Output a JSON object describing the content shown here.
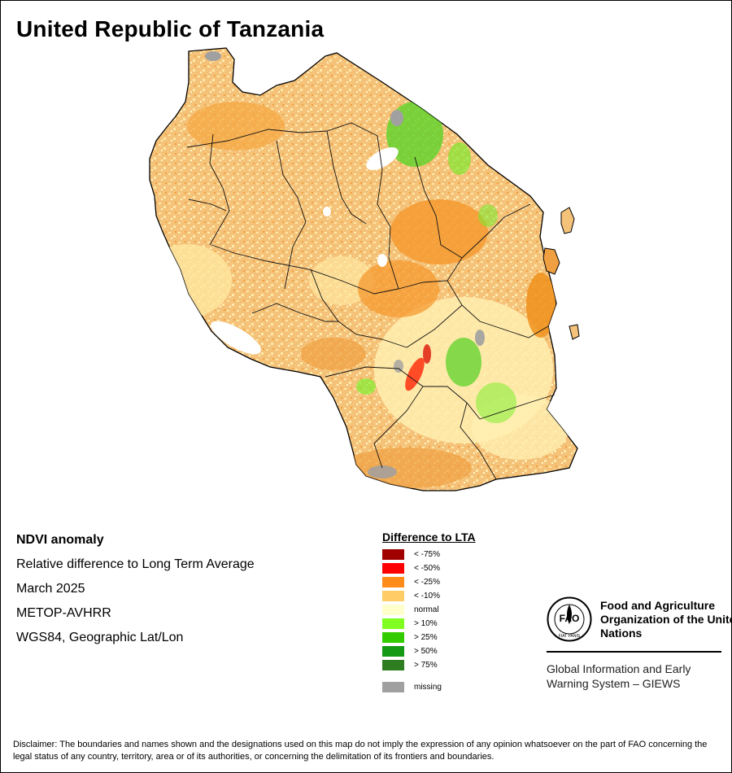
{
  "title": "United Republic of Tanzania",
  "info": {
    "heading": "NDVI anomaly",
    "line1": "Relative difference to Long Term Average",
    "line2": "March 2025",
    "line3": "METOP-AVHRR",
    "line4": "WGS84, Geographic Lat/Lon"
  },
  "legend": {
    "title": "Difference to LTA",
    "items": [
      {
        "label": "< -75%",
        "color": "#a00000"
      },
      {
        "label": "< -50%",
        "color": "#ff0000"
      },
      {
        "label": "< -25%",
        "color": "#ff8c1a"
      },
      {
        "label": "< -10%",
        "color": "#ffcc66"
      },
      {
        "label": "normal",
        "color": "#ffffcc"
      },
      {
        "label": "> 10%",
        "color": "#80ff20"
      },
      {
        "label": "> 25%",
        "color": "#33cc00"
      },
      {
        "label": "> 50%",
        "color": "#159a15"
      },
      {
        "label": "> 75%",
        "color": "#2e7d20"
      },
      {
        "label": "missing",
        "color": "#a0a0a0"
      }
    ]
  },
  "logo": {
    "org": "Food and Agriculture Organization of the United Nations",
    "system": "Global Information and Early Warning System – GIEWS",
    "emblem_letters": "FAO",
    "emblem_motto": "FIAT PANIS"
  },
  "disclaimer": "Disclaimer: The boundaries and names shown and the designations used on this map do not imply the expression of any opinion whatsoever on the part of FAO concerning the legal status of any country, territory, area or of its authorities, or concerning the delimitation of its frontiers and boundaries."
}
